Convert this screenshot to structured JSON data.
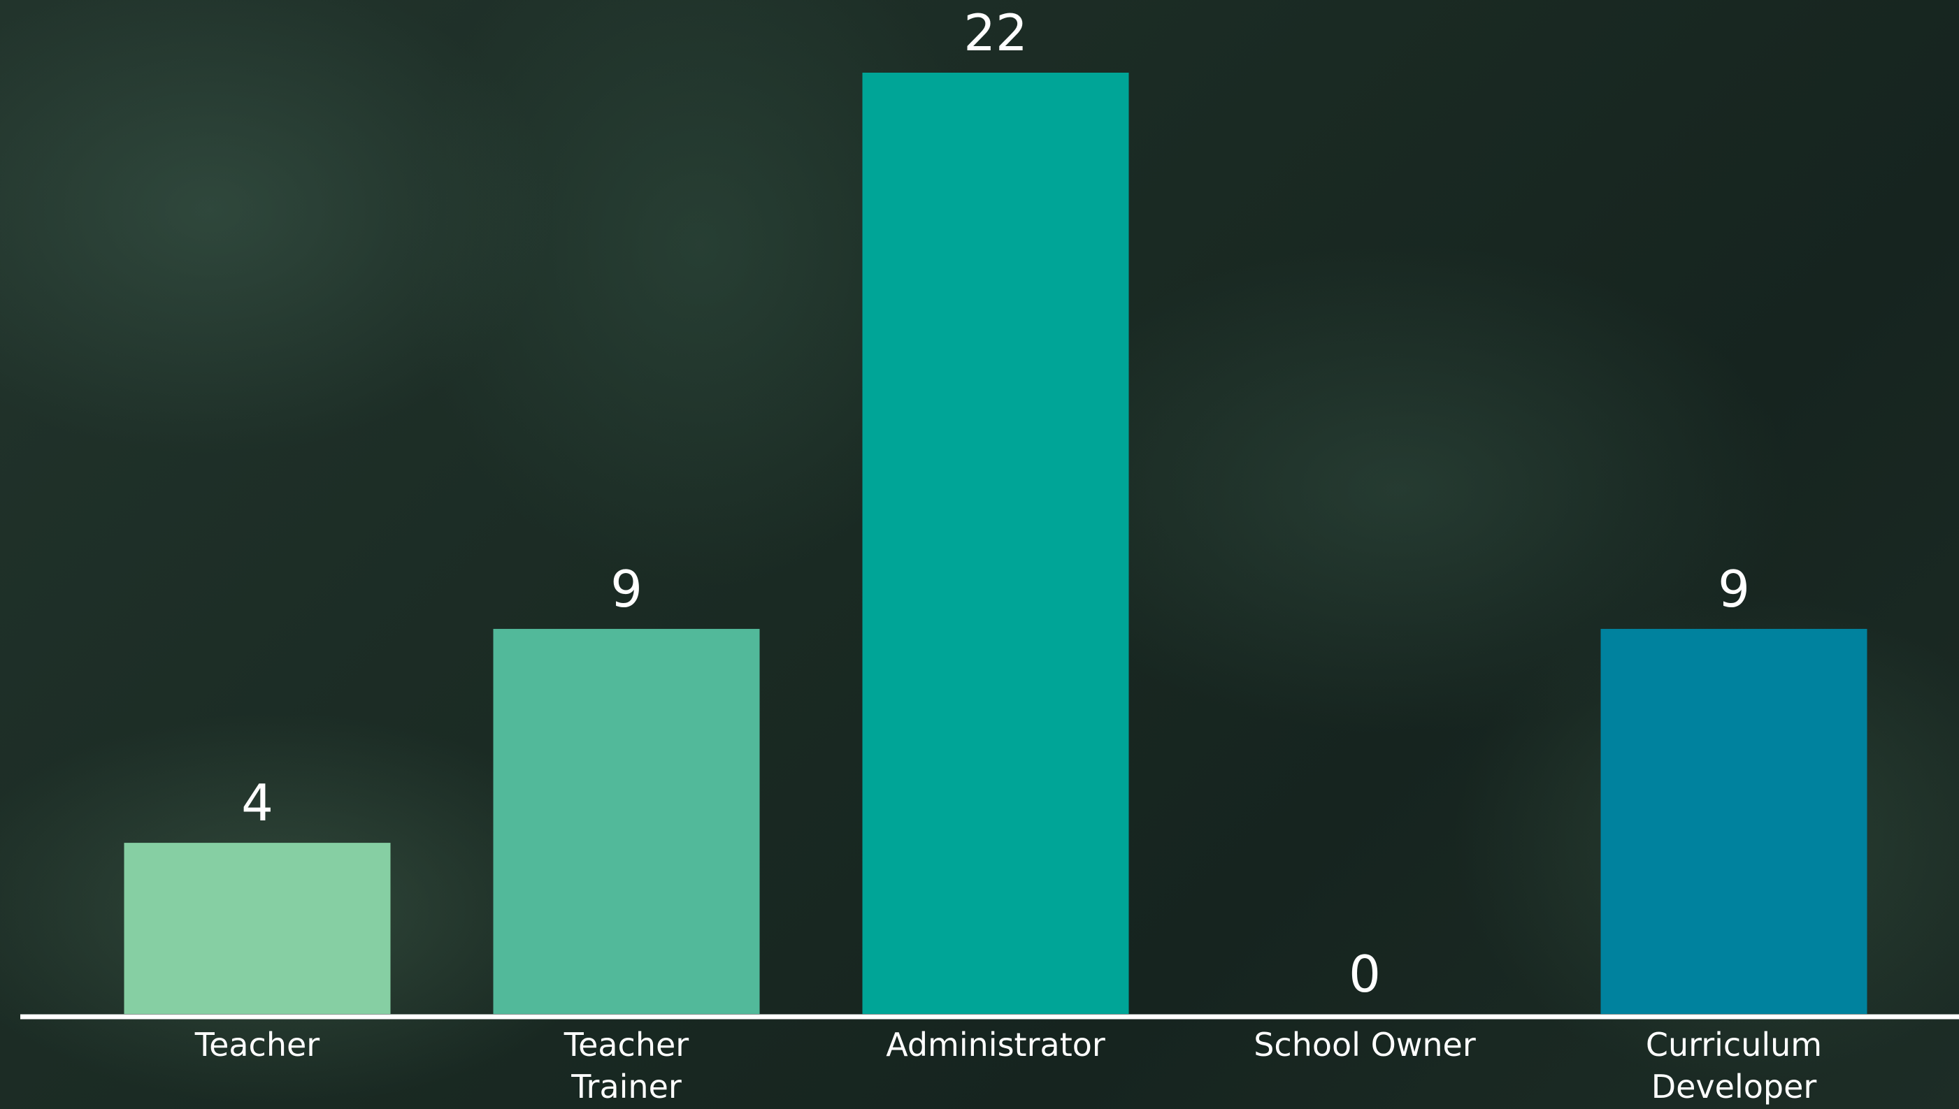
{
  "chart_data": {
    "type": "bar",
    "categories": [
      "Teacher",
      "Teacher Trainer",
      "Administrator",
      "School Owner",
      "Curriculum Developer"
    ],
    "values": [
      4,
      9,
      22,
      0,
      9
    ],
    "colors": [
      "#86cfa3",
      "#52b99a",
      "#00a597",
      "#00959b",
      "#00829e"
    ]
  }
}
